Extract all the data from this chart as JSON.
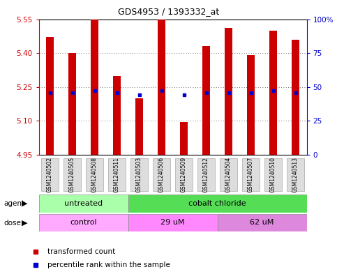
{
  "title": "GDS4953 / 1393332_at",
  "samples": [
    "GSM1240502",
    "GSM1240505",
    "GSM1240508",
    "GSM1240511",
    "GSM1240503",
    "GSM1240506",
    "GSM1240509",
    "GSM1240512",
    "GSM1240504",
    "GSM1240507",
    "GSM1240510",
    "GSM1240513"
  ],
  "bar_values": [
    5.47,
    5.4,
    5.55,
    5.3,
    5.2,
    5.55,
    5.095,
    5.43,
    5.51,
    5.39,
    5.5,
    5.46
  ],
  "percentile_values": [
    5.225,
    5.225,
    5.235,
    5.225,
    5.215,
    5.235,
    5.215,
    5.225,
    5.225,
    5.225,
    5.235,
    5.225
  ],
  "ymin": 4.95,
  "ymax": 5.55,
  "yticks_left": [
    4.95,
    5.1,
    5.25,
    5.4,
    5.55
  ],
  "yticks_right": [
    0,
    25,
    50,
    75,
    100
  ],
  "bar_color": "#cc0000",
  "blue_color": "#0000cc",
  "agent_groups": [
    {
      "label": "untreated",
      "start": 0,
      "end": 4,
      "color": "#aaffaa"
    },
    {
      "label": "cobalt chloride",
      "start": 4,
      "end": 12,
      "color": "#55dd55"
    }
  ],
  "dose_groups": [
    {
      "label": "control",
      "start": 0,
      "end": 4,
      "color": "#ffaaff"
    },
    {
      "label": "29 uM",
      "start": 4,
      "end": 8,
      "color": "#ff88ff"
    },
    {
      "label": "62 uM",
      "start": 8,
      "end": 12,
      "color": "#dd88dd"
    }
  ],
  "legend_red": "transformed count",
  "legend_blue": "percentile rank within the sample"
}
